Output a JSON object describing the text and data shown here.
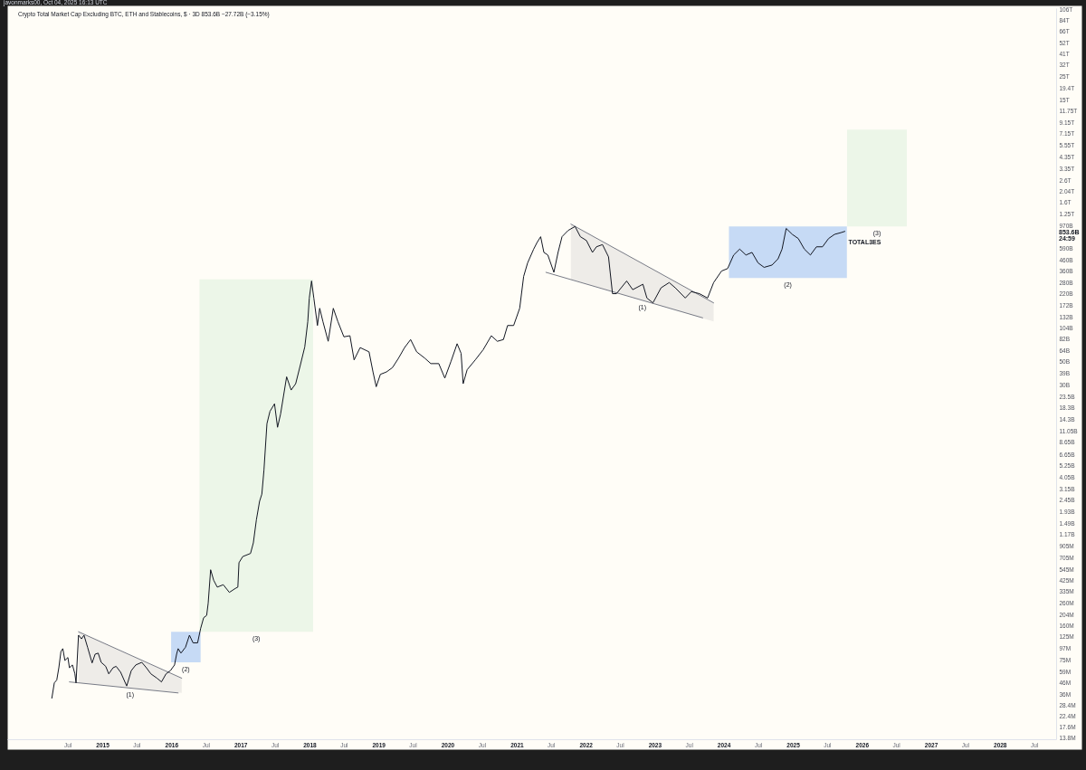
{
  "chart_data": {
    "type": "line",
    "title": "Crypto Total Market Cap Excluding BTC, ETH and Stablecoins, $ · 3D  853.6B  −27.72B (−3.15%)",
    "annotations": [
      "javonmarks00, Oct 04, 2025 16:13 UTC",
      "853.6B",
      "24:59",
      "(1)",
      "(2)",
      "(3)",
      "(1)",
      "(2)",
      "(3)"
    ],
    "log": true,
    "xlim": [
      "2013-08-16",
      "2028-10-25"
    ],
    "ylim": [
      13500000.0,
      110000000000000.0
    ],
    "xticks": [
      {
        "value": "2014-07",
        "label": "Jul"
      },
      "2015",
      {
        "value": "2015-07",
        "label": "Jul"
      },
      "2016",
      {
        "value": "2016-07",
        "label": "Jul"
      },
      "2017",
      {
        "value": "2017-07",
        "label": "Jul"
      },
      "2018",
      {
        "value": "2018-07",
        "label": "Jul"
      },
      "2019",
      {
        "value": "2019-07",
        "label": "Jul"
      },
      "2020",
      {
        "value": "2020-07",
        "label": "Jul"
      },
      "2021",
      {
        "value": "2021-07",
        "label": "Jul"
      },
      "2022",
      {
        "value": "2022-07",
        "label": "Jul"
      },
      "2023",
      {
        "value": "2023-07",
        "label": "Jul"
      },
      "2024",
      {
        "value": "2024-07",
        "label": "Jul"
      },
      "2025",
      {
        "value": "2025-07",
        "label": "Jul"
      },
      "2026",
      {
        "value": "2026-07",
        "label": "Jul"
      },
      "2027",
      {
        "value": "2027-07",
        "label": "Jul"
      },
      "2028",
      {
        "value": "2028-07",
        "label": "Jul"
      }
    ],
    "yticks": [
      {
        "value": 106000000000000.0,
        "label": "106T"
      },
      {
        "value": 84000000000000.0,
        "label": "84T"
      },
      {
        "value": 66000000000000.0,
        "label": "66T"
      },
      {
        "value": 52000000000000.0,
        "label": "52T"
      },
      {
        "value": 41000000000000.0,
        "label": "41T"
      },
      {
        "value": 32000000000000.0,
        "label": "32T"
      },
      {
        "value": 25000000000000.0,
        "label": "25T"
      },
      {
        "value": 19400000000000.0,
        "label": "19.4T"
      },
      {
        "value": 15000000000000.0,
        "label": "15T"
      },
      {
        "value": 11750000000000.0,
        "label": "11.75T"
      },
      {
        "value": 9150000000000.0,
        "label": "9.15T"
      },
      {
        "value": 7150000000000.0,
        "label": "7.15T"
      },
      {
        "value": 5550000000000.0,
        "label": "5.55T"
      },
      {
        "value": 4350000000000.0,
        "label": "4.35T"
      },
      {
        "value": 3350000000000.0,
        "label": "3.35T"
      },
      {
        "value": 2600000000000.0,
        "label": "2.6T"
      },
      {
        "value": 2040000000000.0,
        "label": "2.04T"
      },
      {
        "value": 1600000000000.0,
        "label": "1.6T"
      },
      {
        "value": 1250000000000.0,
        "label": "1.25T"
      },
      {
        "value": 970000000000.0,
        "label": "970B"
      },
      {
        "value": 590000000000.0,
        "label": "590B"
      },
      {
        "value": 460000000000.0,
        "label": "460B"
      },
      {
        "value": 360000000000.0,
        "label": "360B"
      },
      {
        "value": 280000000000.0,
        "label": "280B"
      },
      {
        "value": 220000000000.0,
        "label": "220B"
      },
      {
        "value": 172000000000.0,
        "label": "172B"
      },
      {
        "value": 132000000000.0,
        "label": "132B"
      },
      {
        "value": 104000000000.0,
        "label": "104B"
      },
      {
        "value": 82000000000.0,
        "label": "82B"
      },
      {
        "value": 64000000000.0,
        "label": "64B"
      },
      {
        "value": 50000000000.0,
        "label": "50B"
      },
      {
        "value": 39000000000.0,
        "label": "39B"
      },
      {
        "value": 30000000000.0,
        "label": "30B"
      },
      {
        "value": 23500000000.0,
        "label": "23.5B"
      },
      {
        "value": 18300000000.0,
        "label": "18.3B"
      },
      {
        "value": 14300000000.0,
        "label": "14.3B"
      },
      {
        "value": 11050000000.0,
        "label": "11.05B"
      },
      {
        "value": 8650000000.0,
        "label": "8.65B"
      },
      {
        "value": 6650000000.0,
        "label": "6.65B"
      },
      {
        "value": 5250000000.0,
        "label": "5.25B"
      },
      {
        "value": 4050000000.0,
        "label": "4.05B"
      },
      {
        "value": 3150000000.0,
        "label": "3.15B"
      },
      {
        "value": 2450000000.0,
        "label": "2.45B"
      },
      {
        "value": 1930000000.0,
        "label": "1.93B"
      },
      {
        "value": 1490000000.0,
        "label": "1.49B"
      },
      {
        "value": 1170000000.0,
        "label": "1.17B"
      },
      {
        "value": 905000000.0,
        "label": "905M"
      },
      {
        "value": 705000000.0,
        "label": "705M"
      },
      {
        "value": 545000000.0,
        "label": "545M"
      },
      {
        "value": 425000000.0,
        "label": "425M"
      },
      {
        "value": 335000000.0,
        "label": "335M"
      },
      {
        "value": 260000000.0,
        "label": "260M"
      },
      {
        "value": 204000000.0,
        "label": "204M"
      },
      {
        "value": 160000000.0,
        "label": "160M"
      },
      {
        "value": 125000000.0,
        "label": "125M"
      },
      {
        "value": 97000000.0,
        "label": "97M"
      },
      {
        "value": 75000000.0,
        "label": "75M"
      },
      {
        "value": 59000000.0,
        "label": "59M"
      },
      {
        "value": 46000000.0,
        "label": "46M"
      },
      {
        "value": 36000000.0,
        "label": "36M"
      },
      {
        "value": 28400000.0,
        "label": "28.4M"
      },
      {
        "value": 22400000.0,
        "label": "22.4M"
      },
      {
        "value": 17600000.0,
        "label": "17.6M"
      },
      {
        "value": 13800000.0,
        "label": "13.8M"
      }
    ],
    "x": [
      "2014-04-09",
      "2014-04-22",
      "2014-05-05",
      "2014-05-16",
      "2014-05-27",
      "2014-06-06",
      "2014-06-17",
      "2014-07-03",
      "2014-07-11",
      "2014-07-27",
      "2014-08-09",
      "2014-08-15",
      "2014-08-28",
      "2014-09-13",
      "2014-09-26",
      "2014-10-15",
      "2014-11-08",
      "2014-11-24",
      "2014-12-10",
      "2014-12-26",
      "2015-01-19",
      "2015-02-04",
      "2015-02-27",
      "2015-03-15",
      "2015-04-08",
      "2015-05-10",
      "2015-06-03",
      "2015-06-27",
      "2015-07-29",
      "2015-08-22",
      "2015-09-15",
      "2015-10-17",
      "2015-11-10",
      "2015-12-04",
      "2015-12-27",
      "2016-01-18",
      "2016-01-29",
      "2016-02-06",
      "2016-02-21",
      "2016-03-16",
      "2016-04-06",
      "2016-04-25",
      "2016-05-19",
      "2016-06-04",
      "2016-06-20",
      "2016-07-06",
      "2016-07-14",
      "2016-07-27",
      "2016-08-12",
      "2016-08-31",
      "2016-10-02",
      "2016-11-03",
      "2016-12-05",
      "2016-12-18",
      "2016-12-24",
      "2017-01-13",
      "2017-02-23",
      "2017-03-10",
      "2017-03-26",
      "2017-04-12",
      "2017-04-24",
      "2017-05-05",
      "2017-05-21",
      "2017-06-06",
      "2017-06-30",
      "2017-07-16",
      "2017-08-01",
      "2017-08-17",
      "2017-09-02",
      "2017-09-26",
      "2017-10-20",
      "2017-11-13",
      "2017-12-07",
      "2017-12-23",
      "2017-12-31",
      "2018-01-12",
      "2018-01-24",
      "2018-02-12",
      "2018-02-24",
      "2018-03-13",
      "2018-04-10",
      "2018-05-07",
      "2018-05-31",
      "2018-07-02",
      "2018-08-03",
      "2018-08-25",
      "2018-09-26",
      "2018-11-12",
      "2018-12-03",
      "2018-12-20",
      "2019-01-11",
      "2019-02-12",
      "2019-03-16",
      "2019-04-17",
      "2019-05-19",
      "2019-06-20",
      "2019-07-22",
      "2019-09-03",
      "2019-10-05",
      "2019-11-16",
      "2019-12-18",
      "2020-01-19",
      "2020-02-21",
      "2020-03-13",
      "2020-03-24",
      "2020-04-14",
      "2020-05-27",
      "2020-07-08",
      "2020-08-20",
      "2020-09-21",
      "2020-10-23",
      "2020-11-14",
      "2020-12-16",
      "2021-01-17",
      "2021-02-07",
      "2021-02-28",
      "2021-04-01",
      "2021-04-19",
      "2021-05-08",
      "2021-05-25",
      "2021-06-15",
      "2021-07-17",
      "2021-08-08",
      "2021-08-29",
      "2021-09-30",
      "2021-11-06",
      "2021-12-04",
      "2022-01-05",
      "2022-02-06",
      "2022-02-27",
      "2022-03-31",
      "2022-05-02",
      "2022-05-23",
      "2022-06-13",
      "2022-08-06",
      "2022-09-07",
      "2022-10-31",
      "2022-11-21",
      "2022-12-23",
      "2023-02-04",
      "2023-03-19",
      "2023-04-20",
      "2023-06-12",
      "2023-07-14",
      "2023-08-26",
      "2023-10-08",
      "2023-11-09",
      "2023-12-21",
      "2024-01-22",
      "2024-02-23",
      "2024-03-26",
      "2024-04-28",
      "2024-05-30",
      "2024-07-01",
      "2024-08-02",
      "2024-09-13",
      "2024-10-15",
      "2024-11-05",
      "2024-11-27",
      "2024-12-29",
      "2025-01-30",
      "2025-03-03",
      "2025-04-04",
      "2025-05-06",
      "2025-06-07",
      "2025-07-09",
      "2025-08-10",
      "2025-09-12",
      "2025-10-03"
    ],
    "series": [
      {
        "name": "TOTAL3ES",
        "color": "#131722",
        "values": [
          33000000.0,
          46000000.0,
          49000000.0,
          64000000.0,
          91000000.0,
          97000000.0,
          75000000.0,
          80000000.0,
          64000000.0,
          68000000.0,
          56000000.0,
          46000000.0,
          130000000.0,
          120000000.0,
          130000000.0,
          100000000.0,
          71000000.0,
          86000000.0,
          88000000.0,
          72000000.0,
          66000000.0,
          56000000.0,
          64000000.0,
          66000000.0,
          58000000.0,
          43000000.0,
          60000000.0,
          68000000.0,
          72000000.0,
          64000000.0,
          56000000.0,
          51000000.0,
          47000000.0,
          56000000.0,
          60000000.0,
          68000000.0,
          86000000.0,
          97000000.0,
          88000000.0,
          100000000.0,
          130000000.0,
          110000000.0,
          110000000.0,
          150000000.0,
          190000000.0,
          200000000.0,
          260000000.0,
          540000000.0,
          430000000.0,
          370000000.0,
          390000000.0,
          330000000.0,
          360000000.0,
          370000000.0,
          630000000.0,
          720000000.0,
          770000000.0,
          970000000.0,
          1600000000.0,
          2400000000.0,
          2800000000.0,
          4700000000.0,
          13000000000.0,
          17000000000.0,
          20000000000.0,
          12000000000.0,
          16000000000.0,
          24000000000.0,
          36000000000.0,
          27000000000.0,
          31000000000.0,
          46000000000.0,
          69000000000.0,
          120000000000.0,
          200000000000.0,
          290000000000.0,
          200000000000.0,
          110000000000.0,
          160000000000.0,
          120000000000.0,
          78000000000.0,
          160000000000.0,
          120000000000.0,
          86000000000.0,
          88000000000.0,
          52000000000.0,
          68000000000.0,
          62000000000.0,
          40000000000.0,
          29000000000.0,
          38000000000.0,
          40000000000.0,
          44000000000.0,
          54000000000.0,
          68000000000.0,
          81000000000.0,
          62000000000.0,
          54000000000.0,
          48000000000.0,
          48000000000.0,
          35000000000.0,
          50000000000.0,
          74000000000.0,
          60000000000.0,
          31000000000.0,
          42000000000.0,
          52000000000.0,
          65000000000.0,
          88000000000.0,
          78000000000.0,
          81000000000.0,
          110000000000.0,
          110000000000.0,
          160000000000.0,
          320000000000.0,
          430000000000.0,
          580000000000.0,
          670000000000.0,
          760000000000.0,
          540000000000.0,
          510000000000.0,
          350000000000.0,
          540000000000.0,
          760000000000.0,
          870000000000.0,
          950000000000.0,
          760000000000.0,
          700000000000.0,
          540000000000.0,
          610000000000.0,
          640000000000.0,
          490000000000.0,
          220000000000.0,
          220000000000.0,
          290000000000.0,
          240000000000.0,
          270000000000.0,
          200000000000.0,
          180000000000.0,
          250000000000.0,
          280000000000.0,
          250000000000.0,
          200000000000.0,
          230000000000.0,
          220000000000.0,
          200000000000.0,
          280000000000.0,
          360000000000.0,
          380000000000.0,
          510000000000.0,
          580000000000.0,
          510000000000.0,
          540000000000.0,
          430000000000.0,
          390000000000.0,
          410000000000.0,
          470000000000.0,
          580000000000.0,
          910000000000.0,
          800000000000.0,
          730000000000.0,
          580000000000.0,
          510000000000.0,
          610000000000.0,
          610000000000.0,
          730000000000.0,
          800000000000.0,
          830000000000.0,
          853600000000.0
        ]
      },
      {
        "type": "line",
        "color": "#787b86",
        "x": [
          "2014-08-28",
          "2016-02-25"
        ],
        "values": [
          140000000.0,
          51000000.0
        ],
        "lower": [
          46000000.0,
          37000000.0
        ],
        "upper": [
          140000000.0,
          51000000.0
        ]
      },
      {
        "type": "line",
        "color": "#787b86",
        "x": [
          "2014-07-11",
          "2016-02-06"
        ],
        "values": [
          47000000.0,
          37000000.0
        ]
      },
      {
        "type": "line",
        "color": "#c6daf5",
        "x": [
          "2015-12-31",
          "2016-06-04"
        ],
        "values": [
          null,
          null
        ],
        "lower": [
          72000000.0,
          72000000.0
        ],
        "upper": [
          140000000.0,
          140000000.0
        ]
      },
      {
        "type": "line",
        "color": "#ecf6e8",
        "x": [
          "2016-05-29",
          "2018-01-20"
        ],
        "values": [
          null,
          null
        ],
        "lower": [
          140000000.0,
          140000000.0
        ],
        "upper": [
          300000000000.0,
          300000000000.0
        ]
      },
      {
        "type": "line",
        "color": "#787b86",
        "x": [
          "2021-10-15",
          "2023-11-09"
        ],
        "values": [
          1000000000000.0,
          180000000000.0
        ],
        "lower": [
          300000000000.0,
          120000000000.0
        ],
        "upper": [
          1000000000000.0,
          180000000000.0
        ]
      },
      {
        "type": "line",
        "color": "#787b86",
        "x": [
          "2021-06-05",
          "2023-09-12"
        ],
        "values": [
          350000000000.0,
          130000000000.0
        ]
      },
      {
        "type": "line",
        "color": "#c6daf5",
        "x": [
          "2024-01-29",
          "2025-10-14"
        ],
        "values": [
          null,
          null
        ],
        "lower": [
          310000000000.0,
          310000000000.0
        ],
        "upper": [
          950000000000.0,
          950000000000.0
        ]
      },
      {
        "type": "line",
        "color": "#ecf6e8",
        "x": [
          "2025-10-15",
          "2026-08-27"
        ],
        "values": [
          null,
          null
        ],
        "lower": [
          950000000000.0,
          950000000000.0
        ],
        "upper": [
          7800000000000.0,
          7800000000000.0
        ]
      }
    ]
  }
}
